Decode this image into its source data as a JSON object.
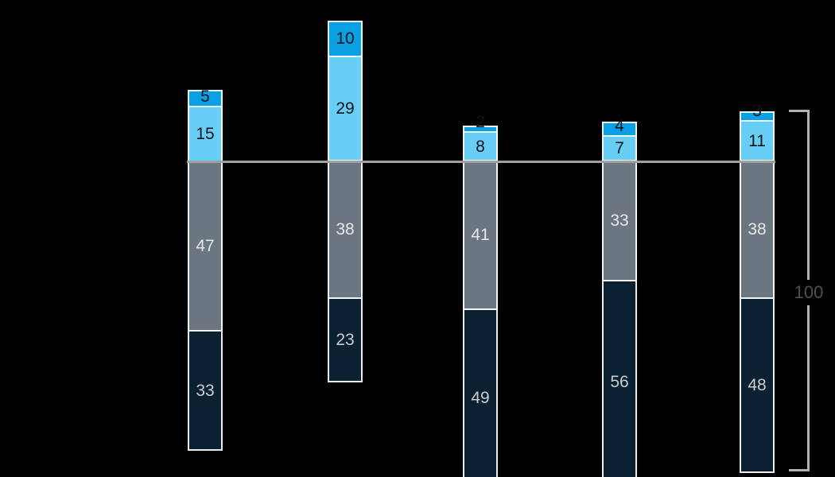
{
  "chart_data": {
    "type": "bar",
    "subtype": "diverging-stacked-bar",
    "description": "Five stacked bars, each summing to 100; two blue segments above a gray baseline, gray and dark-navy segments below it. A right-side bracket marks the full bar span as 100.",
    "total_label": "100",
    "bars": [
      {
        "above": [
          5,
          15
        ],
        "below": [
          47,
          33
        ]
      },
      {
        "above": [
          10,
          29
        ],
        "below": [
          38,
          23
        ]
      },
      {
        "above": [
          2,
          8
        ],
        "below": [
          41,
          49
        ]
      },
      {
        "above": [
          4,
          7
        ],
        "below": [
          33,
          56
        ]
      },
      {
        "above": [
          3,
          11
        ],
        "below": [
          38,
          48
        ]
      }
    ],
    "colors_above": [
      "#0b9fe4",
      "#69cef5"
    ],
    "colors_below": [
      "#6b7680",
      "#0b2031"
    ],
    "label_colors_above": [
      "#111418",
      "#111418"
    ],
    "label_colors_below": [
      "#e3e8eb",
      "#c6cdd3"
    ],
    "baseline_color": "#a0a0a0",
    "bracket_color": "#b2b2b2",
    "total_label_color": "#505050",
    "segment_border_color": "#ffffff",
    "background_color": "#000000",
    "axis_range_units": [
      0,
      100
    ],
    "grid": false,
    "legend": false
  }
}
